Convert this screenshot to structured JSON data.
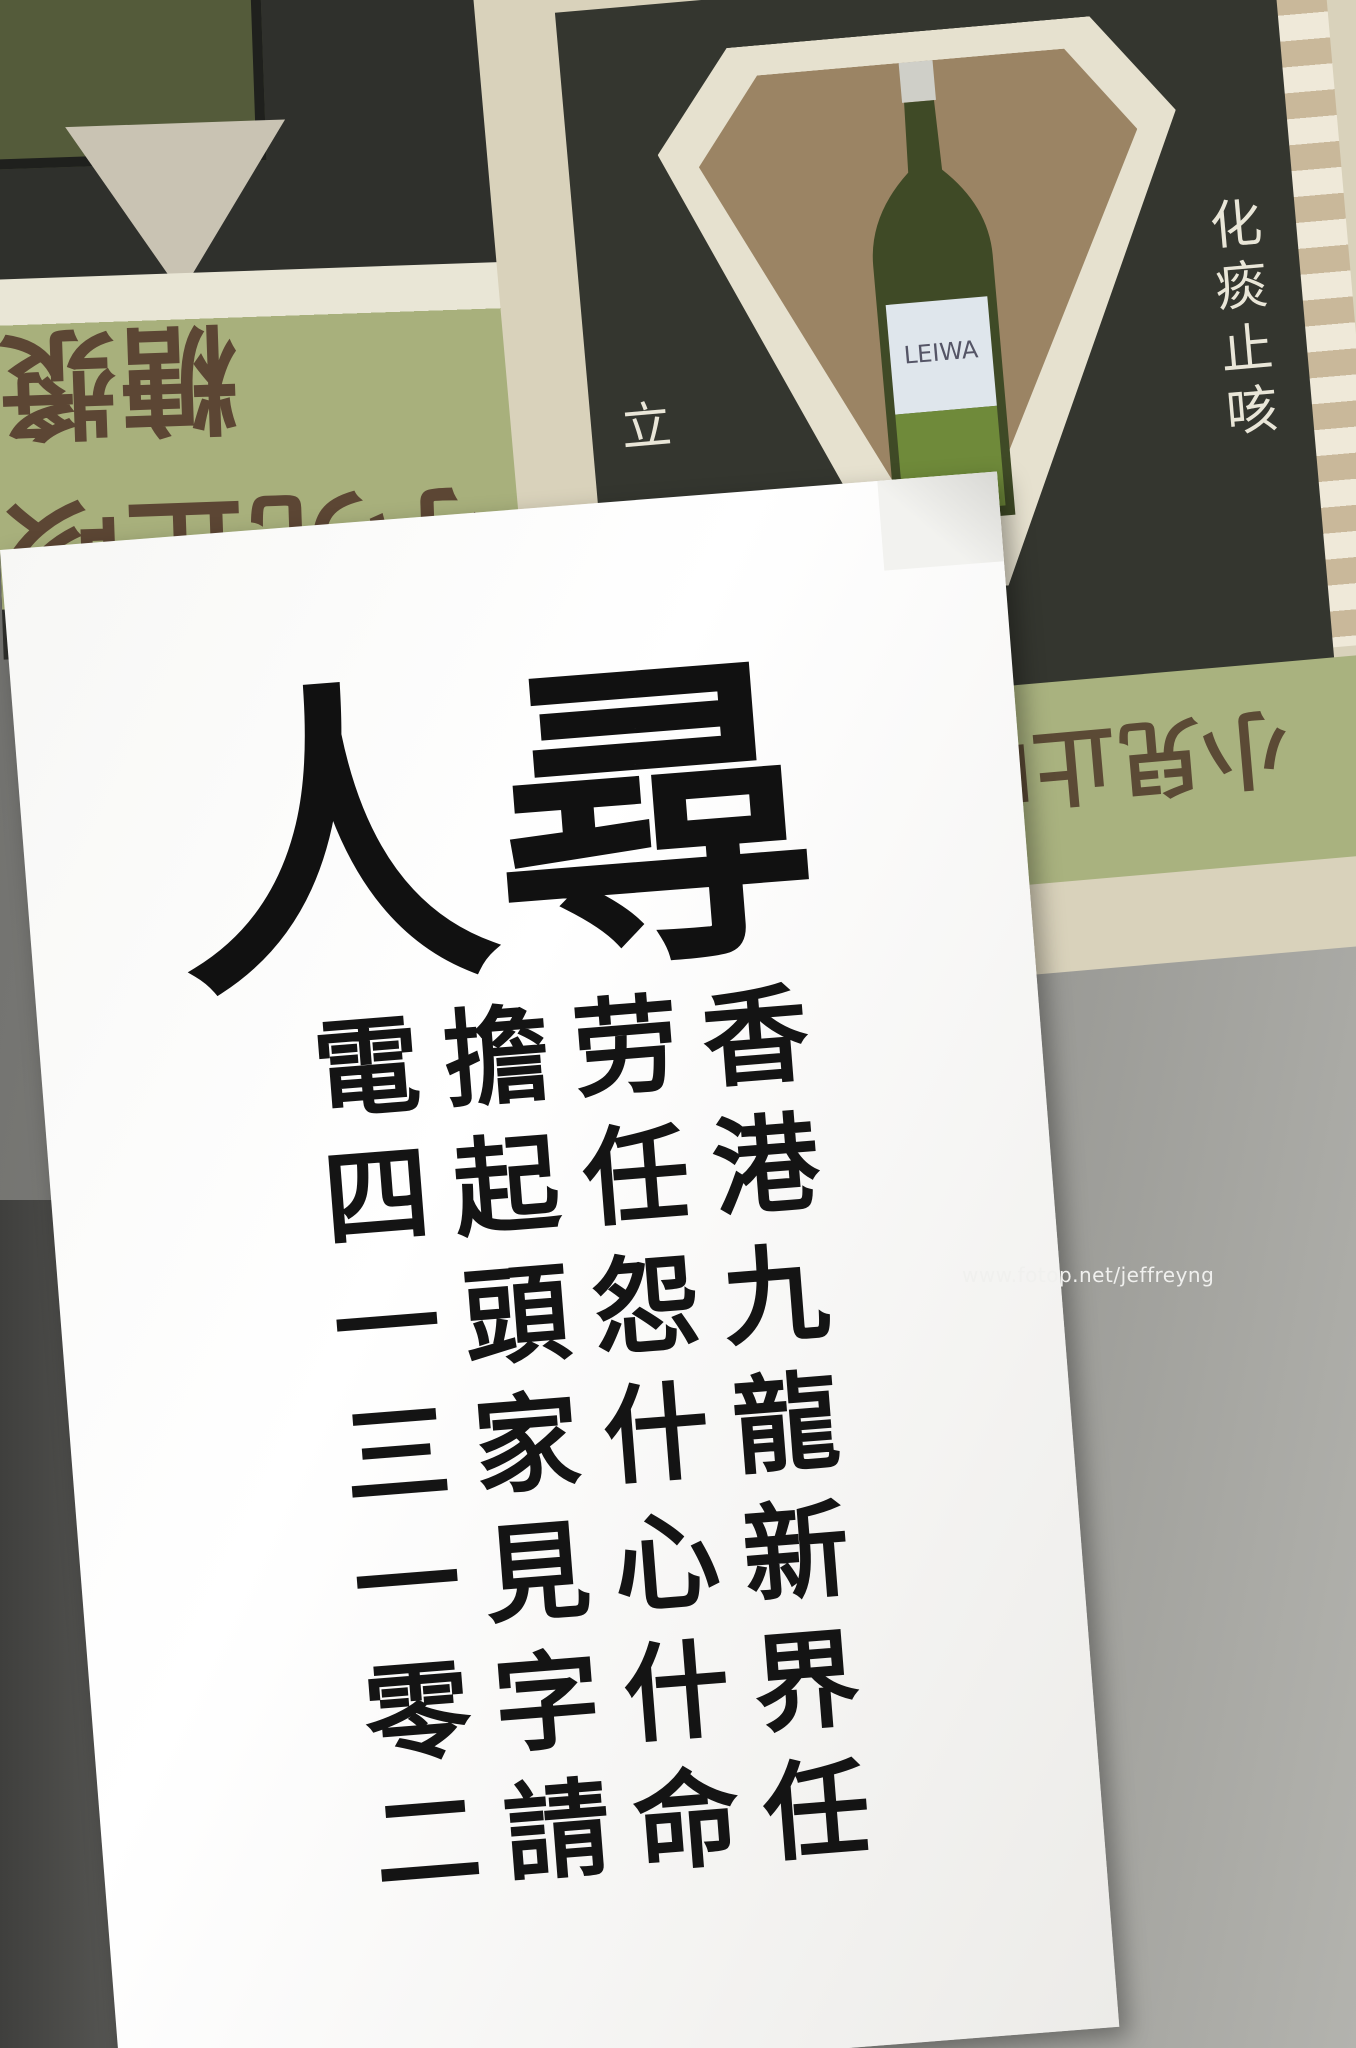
{
  "left_poster": {
    "band_text": "小兒止咳糖漿"
  },
  "right_poster": {
    "bottle_label": "LEIWA",
    "side_text_right": "化痰止咳",
    "side_text_left": "立",
    "band_text": "小兒止咳糖漿"
  },
  "notice": {
    "headline": "人尋",
    "columns": [
      "香港九龍新界任",
      "劳任怨什心什命",
      "擔起頭家見字請",
      "電四一三一零二"
    ]
  },
  "watermark": "www.fotop.net/jeffreyng",
  "colors": {
    "poster_dark": "#34362f",
    "poster_green": "#a9b27f",
    "poster_brown": "#5b4a35",
    "paper": "#ffffff",
    "ink": "#141414"
  }
}
